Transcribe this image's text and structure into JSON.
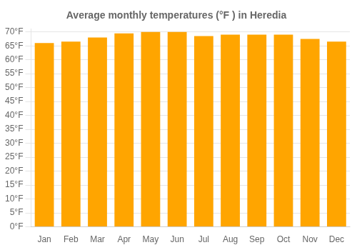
{
  "chart_data": {
    "type": "bar",
    "title": "Average monthly temperatures (°F ) in Heredia",
    "categories": [
      "Jan",
      "Feb",
      "Mar",
      "Apr",
      "May",
      "Jun",
      "Jul",
      "Aug",
      "Sep",
      "Oct",
      "Nov",
      "Dec"
    ],
    "values": [
      66.0,
      66.5,
      68.0,
      69.5,
      70.0,
      70.0,
      68.5,
      69.0,
      69.0,
      69.0,
      67.5,
      66.5
    ],
    "color": "#FFA500",
    "ylim": [
      0,
      71
    ],
    "yticks": [
      {
        "value": 0,
        "label": "0°F"
      },
      {
        "value": 5,
        "label": "5°F"
      },
      {
        "value": 10,
        "label": "10°F"
      },
      {
        "value": 15,
        "label": "15°F"
      },
      {
        "value": 20,
        "label": "20°F"
      },
      {
        "value": 25,
        "label": "25°F"
      },
      {
        "value": 30,
        "label": "30°F"
      },
      {
        "value": 35,
        "label": "35°F"
      },
      {
        "value": 40,
        "label": "40°F"
      },
      {
        "value": 45,
        "label": "45°F"
      },
      {
        "value": 50,
        "label": "50°F"
      },
      {
        "value": 55,
        "label": "55°F"
      },
      {
        "value": 60,
        "label": "60°F"
      },
      {
        "value": 65,
        "label": "65°F"
      },
      {
        "value": 70,
        "label": "70°F"
      }
    ],
    "grid": true
  }
}
